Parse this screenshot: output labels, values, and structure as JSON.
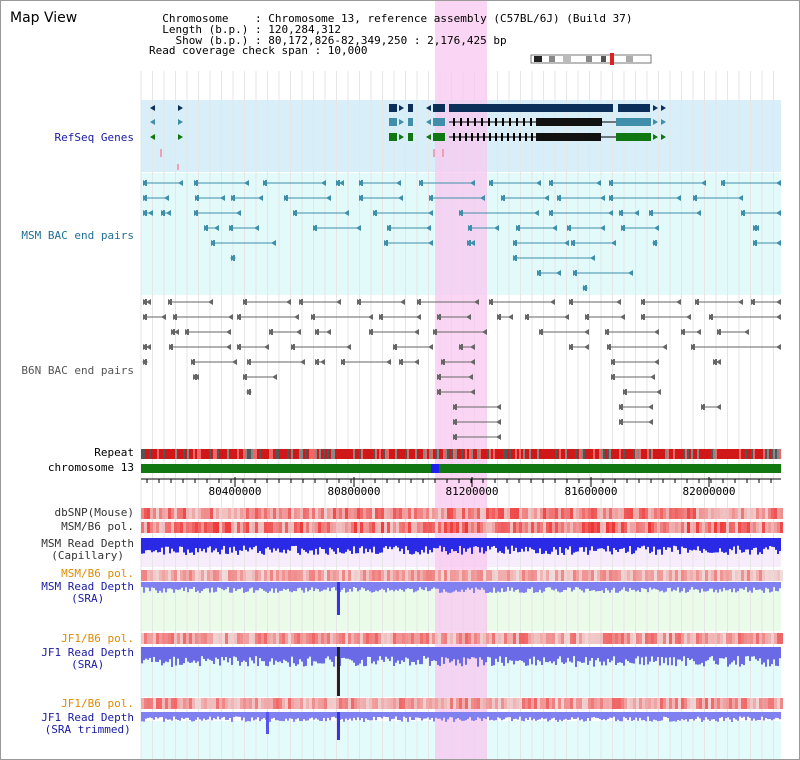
{
  "header": {
    "title": "Map View",
    "info_lines": [
      "  Chromosome    : Chromosome 13, reference assembly (C57BL/6J) (Build 37)",
      "  Length (b.p.) : 120,284,312",
      "    Show (b.p.) : 80,172,826-82,349,250 : 2,176,425 bp",
      "Read coverage check span : 10,000"
    ]
  },
  "ruler": {
    "ticks": [
      "80400000",
      "80800000",
      "81200000",
      "81600000",
      "82000000"
    ]
  },
  "tracks": {
    "refseq": {
      "label": "RefSeq Genes",
      "color": "#1a1aa0"
    },
    "msm_bac": {
      "label": "MSM BAC end pairs",
      "color": "#1f6f93"
    },
    "b6n_bac": {
      "label": "B6N BAC end pairs",
      "color": "#555555"
    },
    "repeat": {
      "label": "Repeat"
    },
    "chromosome": {
      "label": "chromosome 13"
    },
    "dbsnp": {
      "label": "dbSNP(Mouse)"
    },
    "msm_b6_pol": {
      "label": "MSM/B6 pol."
    },
    "msm_depth_cap": {
      "label_line1": "MSM Read Depth",
      "label_line2": "(Capillary)"
    },
    "msm_b6_pol_sra": {
      "label": "MSM/B6 pol.",
      "color": "#e08a00"
    },
    "msm_depth_sra": {
      "label_line1": "MSM Read Depth",
      "label_line2": "(SRA)",
      "color": "#1a1aa0"
    },
    "jf1_b6_pol": {
      "label": "JF1/B6 pol.",
      "color": "#e08a00"
    },
    "jf1_depth_sra": {
      "label_line1": "JF1 Read Depth",
      "label_line2": "(SRA)",
      "color": "#1a1aa0"
    },
    "jf1_b6_pol_2": {
      "label": "JF1/B6 pol.",
      "color": "#e08a00"
    },
    "jf1_depth_trim": {
      "label_line1": "JF1 Read Depth",
      "label_line2": "(SRA trimmed)",
      "color": "#1a1aa0"
    }
  },
  "colors": {
    "highlight": "#f8c8f0",
    "refseq_bg": "#d8eef8",
    "bac_bg": "#e2fafa",
    "chromosome": "#117711",
    "gene_dark": "#0c2f5a",
    "gene_teal": "#3f8eaa",
    "gene_green": "#117711",
    "depth_blue": "#2a2ae6",
    "depth_light": "#8080f0"
  }
}
